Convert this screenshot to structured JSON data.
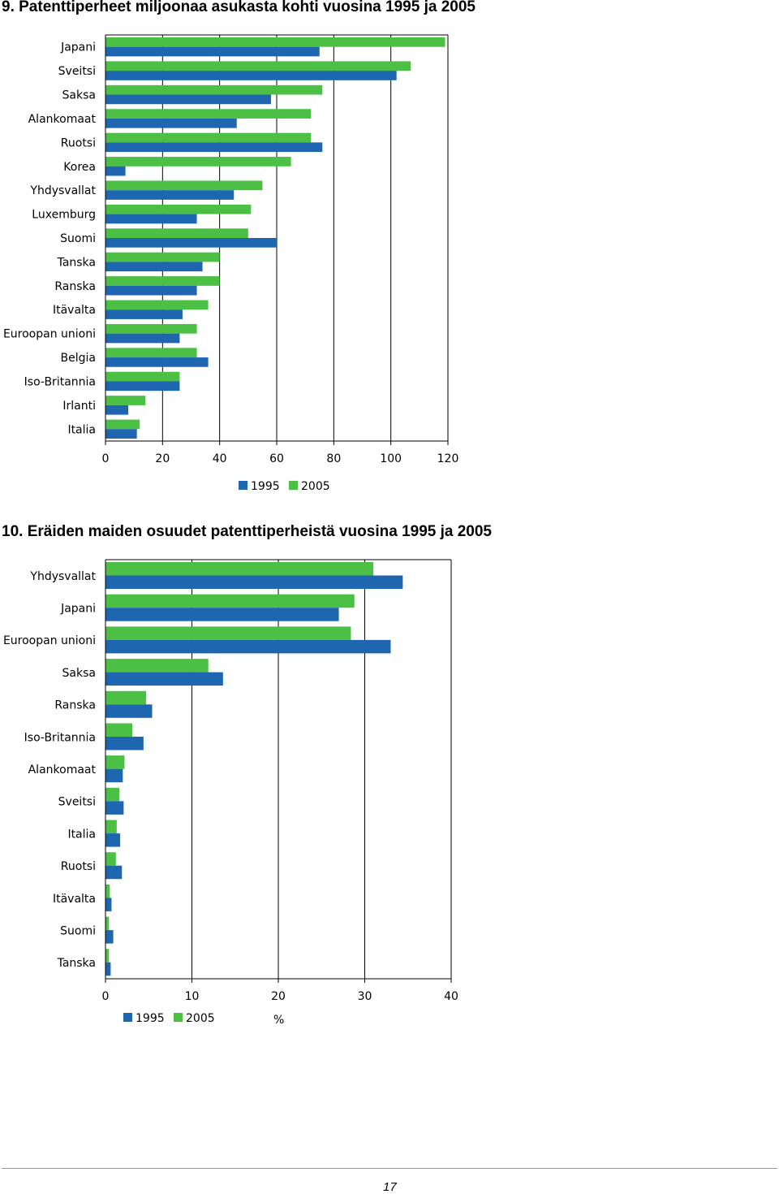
{
  "figure1": {
    "title": "9. Patenttiperheet miljoonaa asukasta kohti vuosina 1995 ja 2005"
  },
  "figure2": {
    "title": "10. Eräiden maiden osuudet patenttiperheistä vuosina 1995 ja 2005"
  },
  "chart_data": [
    {
      "type": "bar",
      "orientation": "horizontal",
      "title": "9. Patenttiperheet miljoonaa asukasta kohti vuosina 1995 ja 2005",
      "categories": [
        "Japani",
        "Sveitsi",
        "Saksa",
        "Alankomaat",
        "Ruotsi",
        "Korea",
        "Yhdysvallat",
        "Luxemburg",
        "Suomi",
        "Tanska",
        "Ranska",
        "Itävalta",
        "Euroopan unioni",
        "Belgia",
        "Iso-Britannia",
        "Irlanti",
        "Italia"
      ],
      "series": [
        {
          "name": "1995",
          "color": "#1f66b1",
          "values": [
            75,
            102,
            58,
            46,
            76,
            7,
            45,
            32,
            60,
            34,
            32,
            27,
            26,
            36,
            26,
            8,
            11
          ]
        },
        {
          "name": "2005",
          "color": "#4cbf45",
          "values": [
            119,
            107,
            76,
            72,
            72,
            65,
            55,
            51,
            50,
            40,
            40,
            36,
            32,
            32,
            26,
            14,
            12
          ]
        }
      ],
      "xlim": [
        0,
        120
      ],
      "xticks": [
        "0",
        "20",
        "40",
        "60",
        "80",
        "100",
        "120"
      ],
      "grid": "vertical",
      "legend": "bottom"
    },
    {
      "type": "bar",
      "orientation": "horizontal",
      "title": "10. Eräiden maiden osuudet patenttiperheistä vuosina 1995 ja 2005",
      "categories": [
        "Yhdysvallat",
        "Japani",
        "Euroopan unioni",
        "Saksa",
        "Ranska",
        "Iso-Britannia",
        "Alankomaat",
        "Sveitsi",
        "Italia",
        "Ruotsi",
        "Itävalta",
        "Suomi",
        "Tanska"
      ],
      "series": [
        {
          "name": "1995",
          "color": "#1f66b1",
          "values": [
            34.4,
            27.0,
            33.0,
            13.6,
            5.4,
            4.4,
            2.0,
            2.1,
            1.7,
            1.9,
            0.7,
            0.9,
            0.6
          ]
        },
        {
          "name": "2005",
          "color": "#4cbf45",
          "values": [
            31.0,
            28.8,
            28.4,
            11.9,
            4.7,
            3.1,
            2.2,
            1.6,
            1.3,
            1.2,
            0.5,
            0.4,
            0.4
          ]
        }
      ],
      "xlim": [
        0,
        40
      ],
      "xticks": [
        "0",
        "10",
        "20",
        "30",
        "40"
      ],
      "xunit": "%",
      "grid": "vertical",
      "legend": "bottom"
    }
  ],
  "footer": {
    "page_number": "17"
  }
}
